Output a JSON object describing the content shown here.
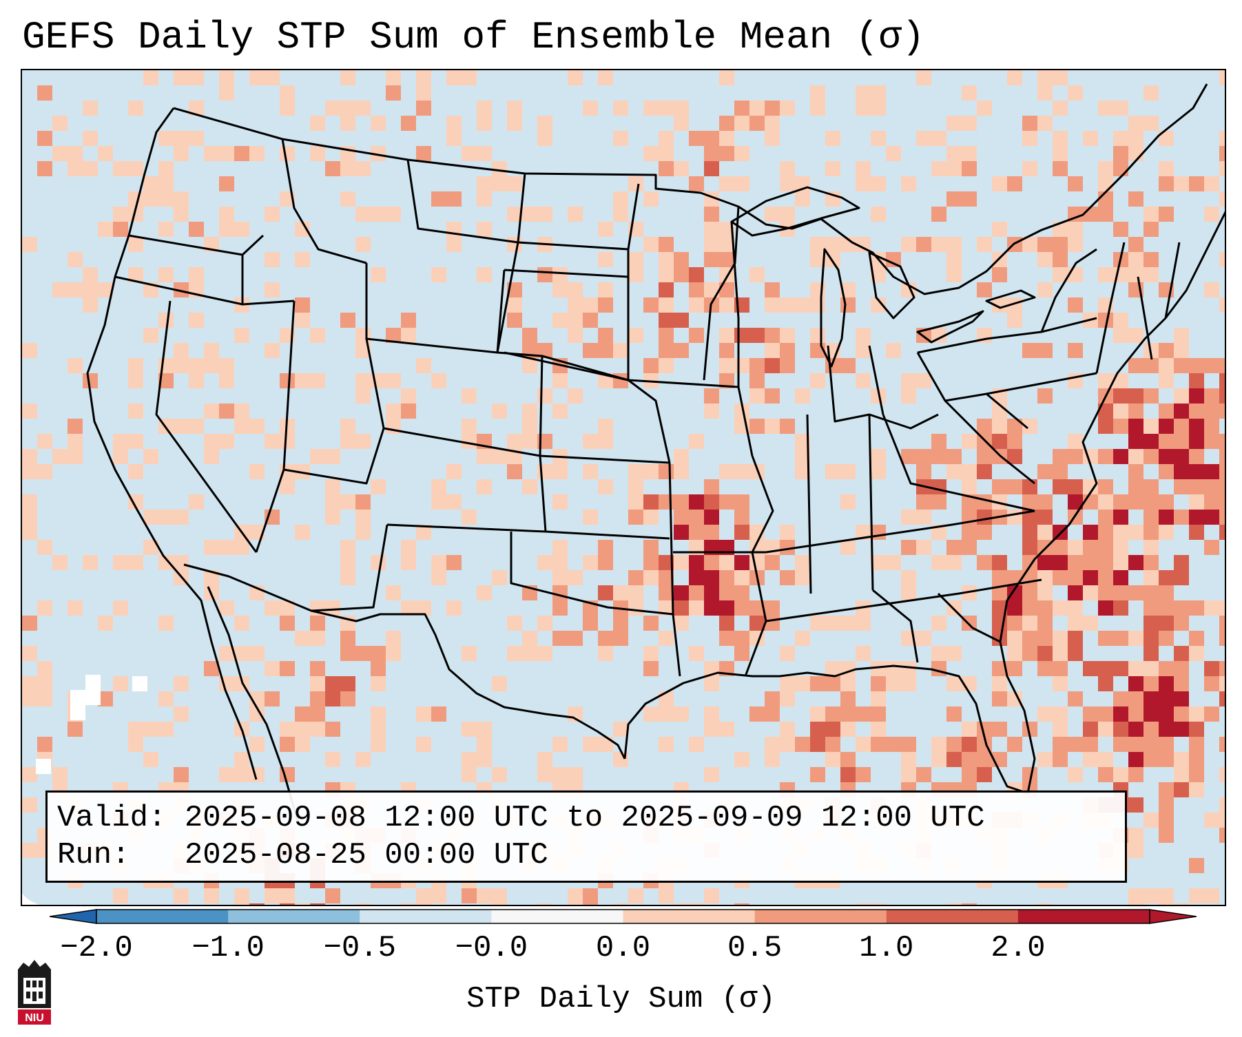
{
  "title": "GEFS Daily STP Sum of Ensemble Mean (σ)",
  "info": {
    "valid_label": "Valid:",
    "valid_value": "2025-09-08 12:00 UTC to 2025-09-09 12:00 UTC",
    "run_label": "Run:",
    "run_value": "2025-08-25 00:00 UTC"
  },
  "colorbar": {
    "label": "STP Daily Sum (σ)",
    "ticks": [
      "−2.0",
      "−1.0",
      "−0.5",
      "−0.0",
      "0.0",
      "0.5",
      "1.0",
      "2.0"
    ],
    "colors": [
      "#4a93c4",
      "#8ec0de",
      "#d1e5f0",
      "#f7f7f7",
      "#fbd0b9",
      "#f09b7d",
      "#d6604d",
      "#b2182b"
    ],
    "extend_low_color": "#2166ac",
    "extend_high_color": "#b2182b"
  },
  "map": {
    "region": "CONUS",
    "background_color": "#d1e5f0",
    "outside_color": "#ffffff"
  },
  "logo": {
    "text": "NIU",
    "color": "#c8102e"
  }
}
